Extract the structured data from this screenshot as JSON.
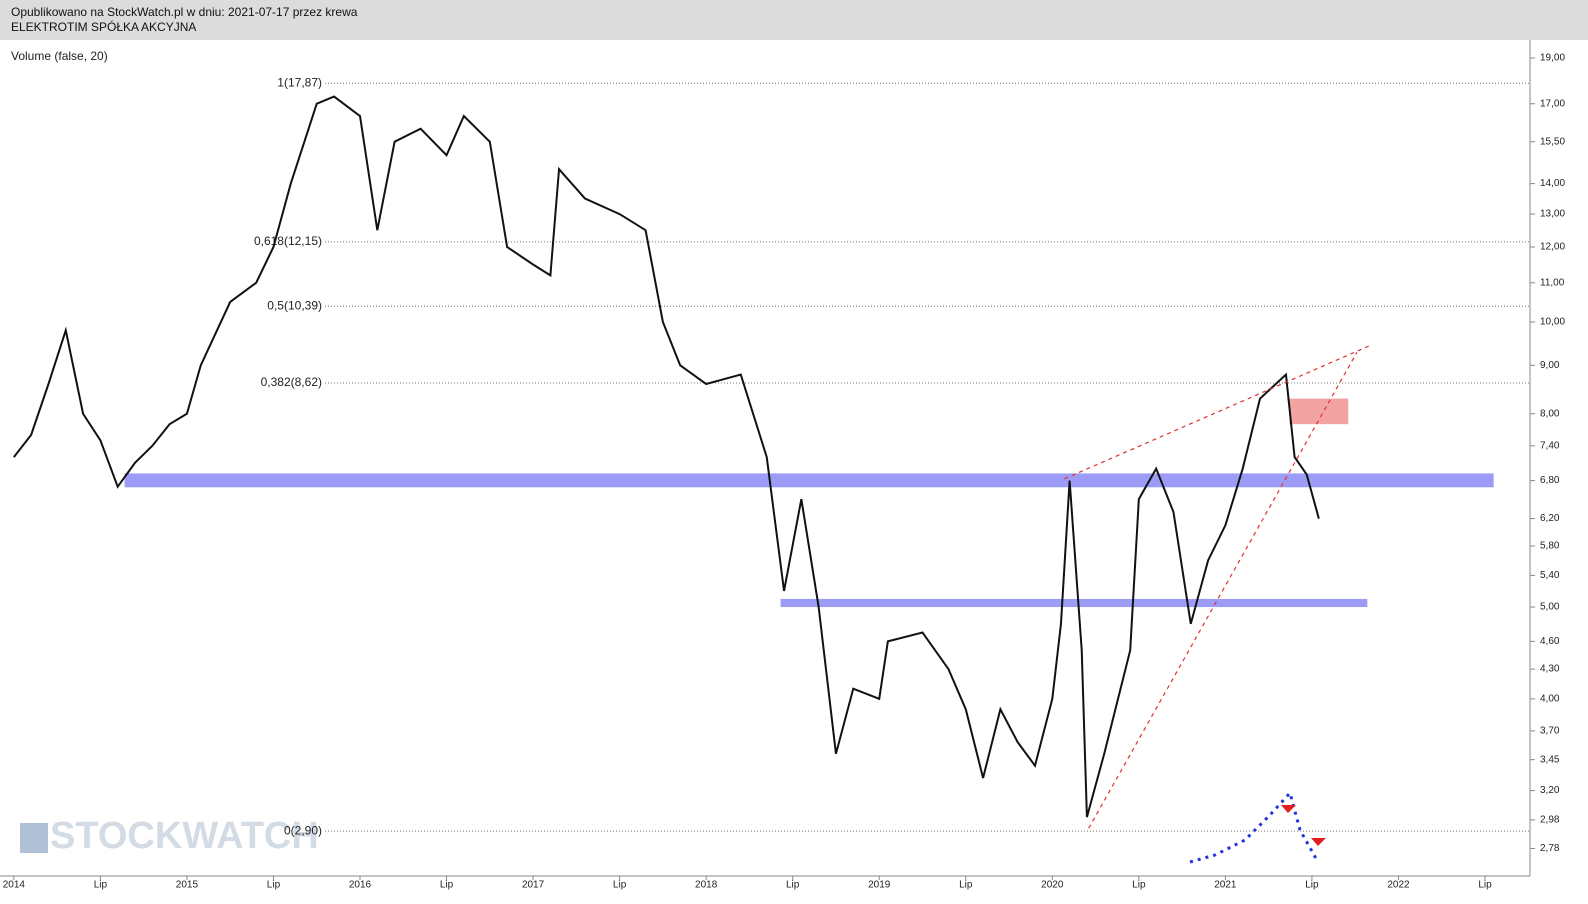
{
  "header": {
    "published": "Opublikowano na StockWatch.pl w dniu: 2021-07-17 przez krewa",
    "company": "ELEKTROTIM SPÓŁKA AKCYJNA"
  },
  "chart_data": {
    "type": "line",
    "indicator": "Volume (false, 20)",
    "watermark": "STOCKWATCH",
    "log_scale": true,
    "color": "#111111",
    "x": [
      2014.0,
      2014.1,
      2014.2,
      2014.3,
      2014.4,
      2014.5,
      2014.6,
      2014.7,
      2014.8,
      2014.9,
      2015.0,
      2015.08,
      2015.25,
      2015.4,
      2015.5,
      2015.6,
      2015.75,
      2015.85,
      2016.0,
      2016.1,
      2016.2,
      2016.35,
      2016.5,
      2016.6,
      2016.75,
      2016.85,
      2017.0,
      2017.1,
      2017.15,
      2017.3,
      2017.5,
      2017.65,
      2017.75,
      2017.85,
      2018.0,
      2018.2,
      2018.35,
      2018.45,
      2018.55,
      2018.65,
      2018.75,
      2018.85,
      2019.0,
      2019.05,
      2019.25,
      2019.4,
      2019.5,
      2019.6,
      2019.7,
      2019.8,
      2019.9,
      2020.0,
      2020.05,
      2020.1,
      2020.17,
      2020.2,
      2020.3,
      2020.45,
      2020.5,
      2020.6,
      2020.7,
      2020.8,
      2020.9,
      2021.0,
      2021.1,
      2021.2,
      2021.35,
      2021.4,
      2021.47,
      2021.54
    ],
    "values": [
      7.2,
      7.6,
      8.6,
      9.8,
      8.0,
      7.5,
      6.7,
      7.1,
      7.4,
      7.8,
      8.0,
      9.0,
      10.5,
      11.0,
      12.0,
      14.0,
      17.0,
      17.3,
      16.5,
      12.5,
      15.5,
      16.0,
      15.0,
      16.5,
      15.5,
      12.0,
      11.5,
      11.2,
      14.5,
      13.5,
      13.0,
      12.5,
      10.0,
      9.0,
      8.6,
      8.8,
      7.2,
      5.2,
      6.5,
      5.0,
      3.5,
      4.1,
      4.0,
      4.6,
      4.7,
      4.3,
      3.9,
      3.3,
      3.9,
      3.6,
      3.4,
      4.0,
      4.8,
      6.8,
      4.5,
      3.0,
      3.5,
      4.5,
      6.5,
      7.0,
      6.3,
      4.8,
      5.6,
      6.1,
      7.0,
      8.3,
      8.8,
      7.2,
      6.9,
      6.2
    ],
    "xlim": [
      2013.92,
      2022.76
    ],
    "xticks": [
      2014,
      {
        "value": 2014.5,
        "label": "Lip"
      },
      2015,
      {
        "value": 2015.5,
        "label": "Lip"
      },
      2016,
      {
        "value": 2016.5,
        "label": "Lip"
      },
      2017,
      {
        "value": 2017.5,
        "label": "Lip"
      },
      2018,
      {
        "value": 2018.5,
        "label": "Lip"
      },
      2019,
      {
        "value": 2019.5,
        "label": "Lip"
      },
      2020,
      {
        "value": 2020.5,
        "label": "Lip"
      },
      2021,
      {
        "value": 2021.5,
        "label": "Lip"
      },
      2022,
      {
        "value": 2022.5,
        "label": "Lip"
      }
    ],
    "ylim": [
      2.6,
      19.85
    ],
    "yticks": [
      {
        "value": 19,
        "label": "19,00"
      },
      {
        "value": 17,
        "label": "17,00"
      },
      {
        "value": 15.5,
        "label": "15,50"
      },
      {
        "value": 14,
        "label": "14,00"
      },
      {
        "value": 13,
        "label": "13,00"
      },
      {
        "value": 12,
        "label": "12,00"
      },
      {
        "value": 11,
        "label": "11,00"
      },
      {
        "value": 10,
        "label": "10,00"
      },
      {
        "value": 9,
        "label": "9,00"
      },
      {
        "value": 8,
        "label": "8,00"
      },
      {
        "value": 7.4,
        "label": "7,40"
      },
      {
        "value": 6.8,
        "label": "6,80"
      },
      {
        "value": 6.2,
        "label": "6,20"
      },
      {
        "value": 5.8,
        "label": "5,80"
      },
      {
        "value": 5.4,
        "label": "5,40"
      },
      {
        "value": 5,
        "label": "5,00"
      },
      {
        "value": 4.6,
        "label": "4,60"
      },
      {
        "value": 4.3,
        "label": "4,30"
      },
      {
        "value": 4,
        "label": "4,00"
      },
      {
        "value": 3.7,
        "label": "3,70"
      },
      {
        "value": 3.45,
        "label": "3,45"
      },
      {
        "value": 3.2,
        "label": "3,20"
      },
      {
        "value": 2.98,
        "label": "2,98"
      },
      {
        "value": 2.78,
        "label": "2,78"
      }
    ],
    "fib_levels": [
      {
        "value": 17.87,
        "label": "1(17,87)"
      },
      {
        "value": 12.15,
        "label": "0,618(12,15)"
      },
      {
        "value": 10.39,
        "label": "0,5(10,39)"
      },
      {
        "value": 8.62,
        "label": "0,382(8,62)"
      },
      {
        "value": 2.9,
        "label": "0(2,90)"
      }
    ],
    "zones": [
      {
        "color": "#9c9cf7",
        "y": [
          6.69,
          6.92
        ],
        "x": [
          2014.64,
          2022.55
        ]
      },
      {
        "color": "#9c9cf7",
        "y": [
          5.0,
          5.1
        ],
        "x": [
          2018.43,
          2021.82
        ]
      },
      {
        "color": "#f4a3a3",
        "y": [
          7.8,
          8.3
        ],
        "x": [
          2021.37,
          2021.71
        ]
      }
    ],
    "trendlines": [
      {
        "color": "#e03030",
        "x": [
          2020.07,
          2021.84
        ],
        "y": [
          6.83,
          9.45
        ]
      },
      {
        "color": "#e03030",
        "x": [
          2020.21,
          2021.76
        ],
        "y": [
          2.92,
          9.29
        ]
      }
    ]
  }
}
